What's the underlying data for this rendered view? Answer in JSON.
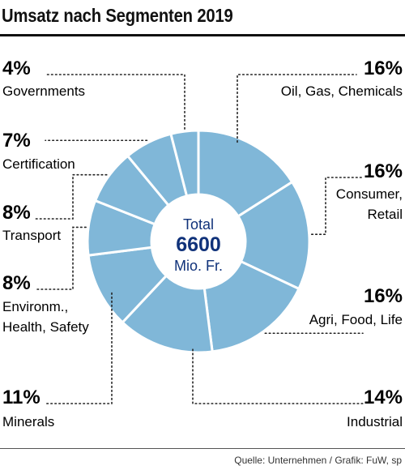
{
  "chart_data": {
    "type": "pie",
    "title": "Umsatz nach Segmenten 2019",
    "center": {
      "line1": "Total",
      "value": "6600",
      "unit": "Mio. Fr."
    },
    "slices": [
      {
        "name": "Oil, Gas, Chemicals",
        "label_lines": [
          "Oil, Gas, Chemicals"
        ],
        "value": 16,
        "pct_label": "16%"
      },
      {
        "name": "Consumer, Retail",
        "label_lines": [
          "Consumer,",
          "Retail"
        ],
        "value": 16,
        "pct_label": "16%"
      },
      {
        "name": "Agri, Food, Life",
        "label_lines": [
          "Agri, Food, Life"
        ],
        "value": 16,
        "pct_label": "16%"
      },
      {
        "name": "Industrial",
        "label_lines": [
          "Industrial"
        ],
        "value": 14,
        "pct_label": "14%"
      },
      {
        "name": "Minerals",
        "label_lines": [
          "Minerals"
        ],
        "value": 11,
        "pct_label": "11%"
      },
      {
        "name": "Environm., Health, Safety",
        "label_lines": [
          "Environm.,",
          "Health, Safety"
        ],
        "value": 8,
        "pct_label": "8%"
      },
      {
        "name": "Transport",
        "label_lines": [
          "Transport"
        ],
        "value": 8,
        "pct_label": "8%"
      },
      {
        "name": "Certification",
        "label_lines": [
          "Certification"
        ],
        "value": 7,
        "pct_label": "7%"
      },
      {
        "name": "Governments",
        "label_lines": [
          "Governments"
        ],
        "value": 4,
        "pct_label": "4%"
      }
    ],
    "colors": {
      "slice": "#80b7d8",
      "separator": "#ffffff",
      "center_text": "#10327a",
      "leader": "#222222"
    }
  },
  "source": "Quelle: Unternehmen / Grafik: FuW, sp"
}
